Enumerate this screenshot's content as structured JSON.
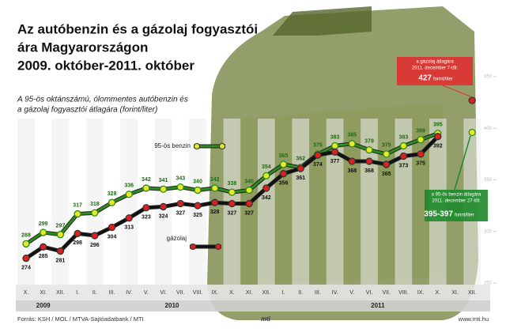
{
  "chart_data": {
    "type": "line",
    "title": [
      "Az autóbenzin és a gázolaj fogyasztói",
      "ára Magyarországon",
      "2009. október-2011. október"
    ],
    "subtitle": [
      "A 95-ös oktánszámú, ólommentes autóbenzin és",
      "a gázolaj fogyasztói átlagára (forint/liter)"
    ],
    "categories": [
      "X.",
      "XI.",
      "XII.",
      "I.",
      "II.",
      "III.",
      "IV.",
      "V.",
      "VI.",
      "VII.",
      "VIII.",
      "IX.",
      "X.",
      "XI.",
      "XII.",
      "I.",
      "II.",
      "III.",
      "IV.",
      "V.",
      "VI.",
      "VII.",
      "VIII.",
      "IX.",
      "X.",
      "XI.",
      "XII."
    ],
    "year_groups": [
      {
        "label": "2009",
        "span": 3
      },
      {
        "label": "2010",
        "span": 12
      },
      {
        "label": "2011",
        "span": 12
      }
    ],
    "series": [
      {
        "name": "95-ös benzin",
        "color": "#2e8b1e",
        "marker": "#e8e82a",
        "values": [
          288,
          299,
          297,
          317,
          318,
          328,
          336,
          342,
          341,
          343,
          340,
          342,
          338,
          340,
          354,
          365,
          362,
          375,
          383,
          385,
          379,
          375,
          383,
          389,
          395,
          null,
          396
        ],
        "value_labels": [
          "288",
          "299",
          "297",
          "317",
          "318",
          "328",
          "336",
          "342",
          "341",
          "343",
          "340",
          "342",
          "338",
          "340",
          "354",
          "365",
          "362",
          "375",
          "383",
          "385",
          "379",
          "375",
          "383",
          "389",
          "395",
          null,
          null
        ]
      },
      {
        "name": "gázolaj",
        "color": "#111111",
        "marker": "#e02020",
        "values": [
          274,
          285,
          281,
          298,
          296,
          304,
          313,
          323,
          324,
          327,
          325,
          328,
          327,
          327,
          342,
          356,
          361,
          374,
          377,
          368,
          368,
          365,
          373,
          375,
          392,
          null,
          427
        ],
        "value_labels": [
          "274",
          "285",
          "281",
          "298",
          "296",
          "304",
          "313",
          "323",
          "324",
          "327",
          "325",
          "328",
          "327",
          "327",
          "342",
          "356",
          "361",
          "374",
          "377",
          "368",
          "368",
          "365",
          "373",
          "375",
          "392",
          null,
          null
        ]
      }
    ],
    "ylim": [
      250,
      450
    ],
    "yticks": [
      250,
      300,
      350,
      400,
      450
    ],
    "annotations": [
      {
        "lines": [
          "a gázolaj átlagára",
          "2011. december 7-től:"
        ],
        "value": "427",
        "unit": "forint/liter"
      },
      {
        "lines": [
          "a 95-ös benzin átlagára",
          "2011. december 27-től:"
        ],
        "value": "395-397",
        "unit": "forint/liter"
      }
    ],
    "source": "Forrás: KSH / MOL / MTVA-Sajtóadatbank / MTI",
    "logo": "mti",
    "url": "www.mti.hu"
  }
}
